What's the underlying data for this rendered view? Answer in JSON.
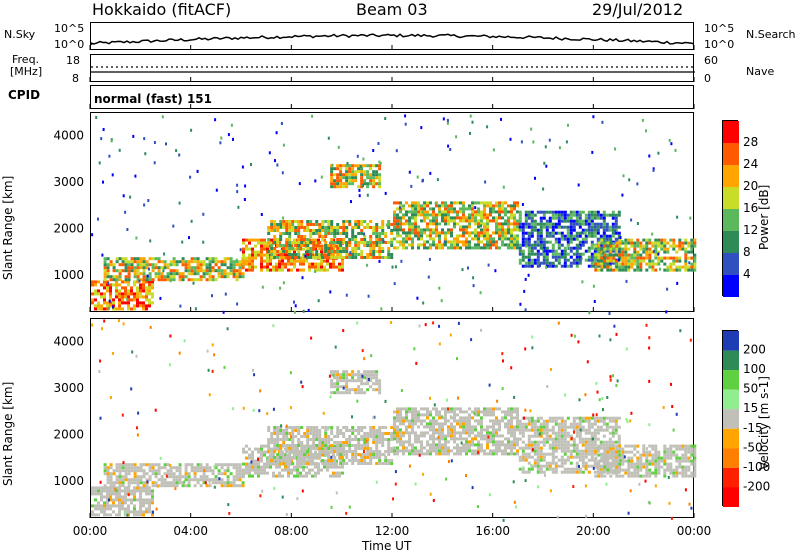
{
  "header": {
    "station": "Hokkaido (fitACF)",
    "beam": "Beam 03",
    "date": "29/Jul/2012"
  },
  "noise_panel": {
    "left_label": "N.Sky",
    "left_ticks": [
      "10^5",
      "10^0"
    ],
    "right_label": "N.Search",
    "right_ticks": [
      "10^5",
      "10^0"
    ]
  },
  "freq_panel": {
    "left_label_1": "Freq.",
    "left_label_2": "[MHz]",
    "left_ticks": [
      "18",
      "8"
    ],
    "right_label": "Nave",
    "right_ticks": [
      "60",
      "0"
    ]
  },
  "cpid_panel": {
    "label": "CPID",
    "mode": "normal (fast) 151"
  },
  "x_axis": {
    "label": "Time UT",
    "ticks": [
      "00:00",
      "04:00",
      "08:00",
      "12:00",
      "16:00",
      "20:00",
      "00:00"
    ]
  },
  "chart_data": [
    {
      "type": "heatmap",
      "name": "power",
      "ylabel": "Slant Range [km]",
      "yticks": [
        1000,
        2000,
        3000,
        4000
      ],
      "ylim": [
        200,
        4500
      ],
      "xlim_hours": [
        0,
        24
      ],
      "colorbar_label": "Power [dB]",
      "colorbar_ticks": [
        "28",
        "24",
        "20",
        "16",
        "12",
        "8",
        "4"
      ],
      "colors": [
        "#0000ff",
        "#3050c0",
        "#2e8b57",
        "#5cb85c",
        "#c8dc28",
        "#ffa500",
        "#ff5a00",
        "#ff0000"
      ],
      "echo_bands": [
        {
          "start_h": 0,
          "end_h": 2.5,
          "range_km": [
            300,
            900
          ],
          "level": "high"
        },
        {
          "start_h": 0.5,
          "end_h": 6,
          "range_km": [
            900,
            1400
          ],
          "level": "medium"
        },
        {
          "start_h": 6,
          "end_h": 10,
          "range_km": [
            1100,
            1800
          ],
          "level": "high"
        },
        {
          "start_h": 7,
          "end_h": 12,
          "range_km": [
            1400,
            2200
          ],
          "level": "medium"
        },
        {
          "start_h": 9.5,
          "end_h": 11.5,
          "range_km": [
            2900,
            3400
          ],
          "level": "medium"
        },
        {
          "start_h": 12,
          "end_h": 17,
          "range_km": [
            1600,
            2600
          ],
          "level": "medium"
        },
        {
          "start_h": 17,
          "end_h": 21,
          "range_km": [
            1200,
            2400
          ],
          "level": "low"
        },
        {
          "start_h": 20,
          "end_h": 24,
          "range_km": [
            1100,
            1800
          ],
          "level": "medium"
        }
      ]
    },
    {
      "type": "heatmap",
      "name": "velocity",
      "ylabel": "Slant Range [km]",
      "yticks": [
        1000,
        2000,
        3000,
        4000
      ],
      "ylim": [
        200,
        4500
      ],
      "xlim_hours": [
        0,
        24
      ],
      "colorbar_label": "Velocity [m s-1]",
      "colorbar_ticks": [
        "200",
        "100",
        "50",
        "15",
        "-15",
        "-50",
        "-100",
        "-200"
      ],
      "colors": [
        "#1e3cb4",
        "#2e8b57",
        "#5fd040",
        "#90ee90",
        "#c0c0b8",
        "#ffa500",
        "#ff7f00",
        "#ff2000",
        "#ff0000"
      ],
      "dominant_value": "ground scatter (grey, -15..15 m/s)"
    }
  ]
}
